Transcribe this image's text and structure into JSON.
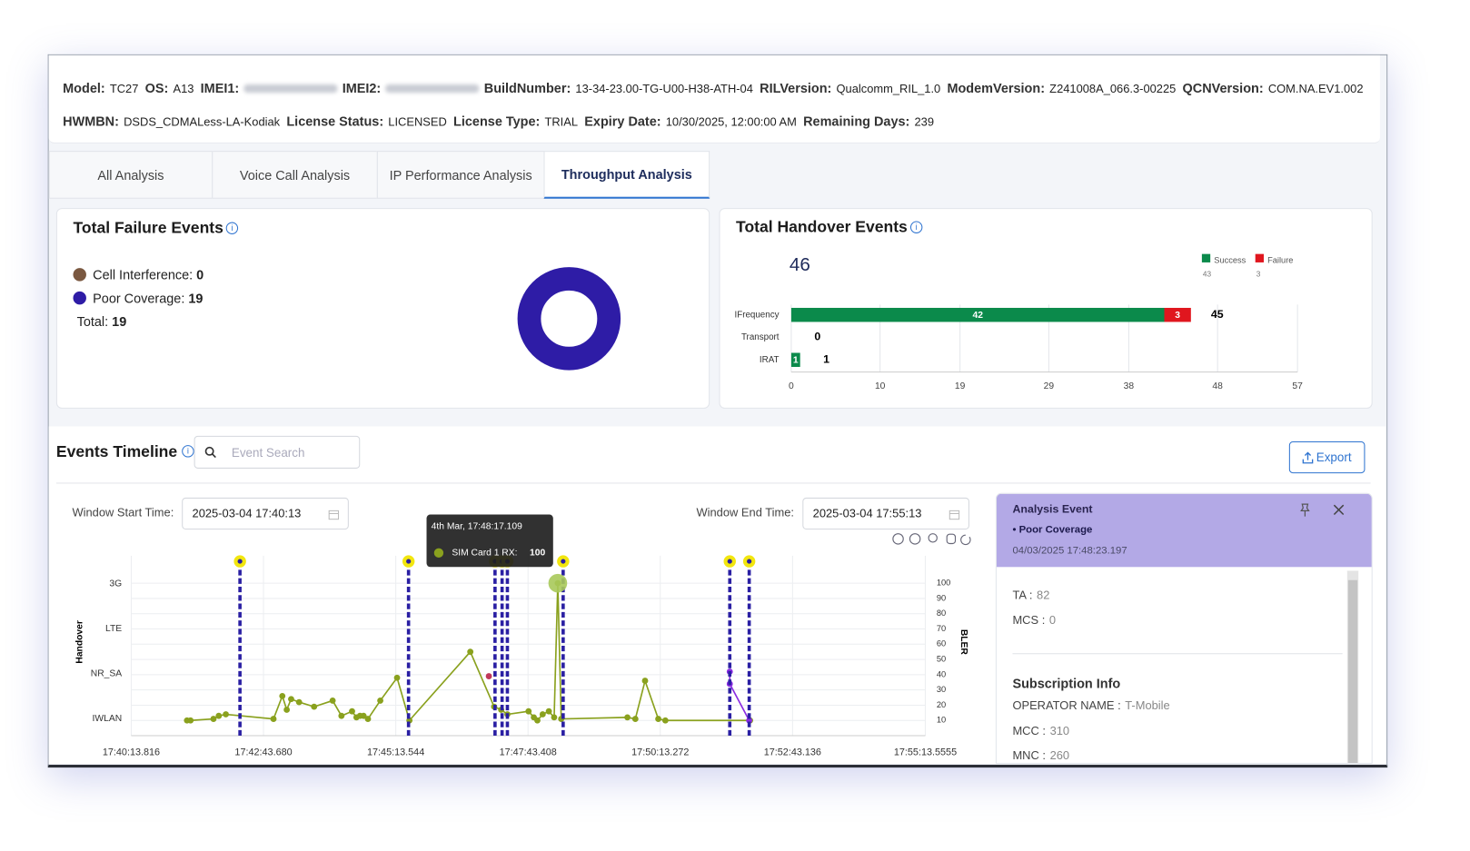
{
  "device_info": {
    "rows": [
      [
        {
          "label": "Model:",
          "value": "TC27"
        },
        {
          "label": "OS:",
          "value": "A13"
        },
        {
          "label": "IMEI1:",
          "redacted": true
        },
        {
          "label": "IMEI2:",
          "redacted": true
        },
        {
          "label": "BuildNumber:",
          "value": "13-34-23.00-TG-U00-H38-ATH-04"
        },
        {
          "label": "RILVersion:",
          "value": "Qualcomm_RIL_1.0"
        },
        {
          "label": "ModemVersion:",
          "value": "Z241008A_066.3-00225"
        },
        {
          "label": "QCNVersion:",
          "value": "COM.NA.EV1.002"
        }
      ],
      [
        {
          "label": "HWMBN:",
          "value": "DSDS_CDMALess-LA-Kodiak"
        },
        {
          "label": "License Status:",
          "value": "LICENSED"
        },
        {
          "label": "License Type:",
          "value": "TRIAL"
        },
        {
          "label": "Expiry Date:",
          "value": "10/30/2025, 12:00:00 AM"
        },
        {
          "label": "Remaining Days:",
          "value": "239"
        }
      ]
    ]
  },
  "tabs": {
    "items": [
      "All Analysis",
      "Voice Call Analysis",
      "IP Performance Analysis",
      "Throughput Analysis"
    ],
    "active": 3
  },
  "failure_events": {
    "title": "Total Failure Events",
    "legend": [
      {
        "label": "Cell Interference:",
        "value": 0,
        "color": "#7a5840"
      },
      {
        "label": "Poor Coverage:",
        "value": 19,
        "color": "#2e1ca6"
      }
    ],
    "total_label": "Total:",
    "total": 19
  },
  "handover_events": {
    "title": "Total Handover Events",
    "total": 46,
    "chart_data": {
      "type": "bar",
      "orientation": "horizontal",
      "stacked": true,
      "categories": [
        "IFrequency",
        "Transport",
        "IRAT"
      ],
      "series": [
        {
          "name": "Success",
          "color": "#0b8a4b",
          "total": 43,
          "values": [
            42,
            0,
            1
          ]
        },
        {
          "name": "Failure",
          "color": "#e0161e",
          "total": 3,
          "values": [
            3,
            0,
            0
          ]
        }
      ],
      "totals": [
        45,
        0,
        1
      ],
      "xlim": [
        0,
        57
      ],
      "xticks": [
        0,
        10,
        19,
        29,
        38,
        48,
        57
      ],
      "grid": true
    }
  },
  "events_timeline": {
    "title": "Events Timeline",
    "search_placeholder": "Event Search",
    "export": "Export",
    "window_start": {
      "label": "Window Start Time:",
      "value": "2025-03-04 17:40:13"
    },
    "window_end": {
      "label": "Window End Time:",
      "value": "2025-03-04 17:55:13"
    },
    "chart_data": {
      "type": "line",
      "ylabel": "Handover",
      "ycategories": [
        "IWLAN",
        "NR_SA",
        "LTE",
        "3G"
      ],
      "y2label": "BLER",
      "xlim": [
        "17:40:13.816",
        "17:55:13.5555"
      ],
      "xticks": [
        "17:40:13.816",
        "17:42:43.680",
        "17:45:13.544",
        "17:47:43.408",
        "17:50:13.272",
        "17:52:43.136",
        "17:55:13.5555"
      ],
      "y2lim": [
        0,
        118
      ],
      "y2ticks": [
        10,
        20,
        30,
        40,
        50,
        60,
        70,
        80,
        90,
        100
      ],
      "grid": true,
      "series": [
        {
          "name": "SIM Card 1 RX",
          "color": "#8aa11e",
          "axis": "y2",
          "x": [
            "17:41:17",
            "17:41:21",
            "17:41:47",
            "17:41:53",
            "17:42:01",
            "17:42:55",
            "17:43:05",
            "17:43:10",
            "17:43:15",
            "17:43:24",
            "17:43:41",
            "17:44:02",
            "17:44:12",
            "17:44:24",
            "17:44:29",
            "17:44:33",
            "17:44:37",
            "17:44:42",
            "17:44:56",
            "17:45:15",
            "17:45:29",
            "17:46:38",
            "17:47:05",
            "17:47:13",
            "17:47:20",
            "17:47:44",
            "17:47:50",
            "17:47:54",
            "17:48:00",
            "17:48:07",
            "17:48:13",
            "17:48:17.109",
            "17:48:21",
            "17:49:36",
            "17:49:45",
            "17:49:56",
            "17:50:11",
            "17:50:19",
            "17:51:55"
          ],
          "values": [
            10,
            10,
            11,
            13,
            14,
            11,
            26,
            17,
            24,
            22,
            19,
            23,
            13,
            16,
            12,
            13,
            13,
            11,
            23,
            38,
            10,
            55,
            19,
            17,
            14,
            16,
            12,
            10,
            14,
            16,
            12,
            100,
            11,
            12,
            11,
            36,
            11,
            10,
            10
          ]
        },
        {
          "color": "#8a2be2",
          "axis": "y2",
          "x": [
            "17:51:32",
            "17:51:32",
            "17:51:54"
          ],
          "values": [
            42,
            34,
            10
          ]
        },
        {
          "color": "#c0395a",
          "axis": "y2",
          "x": [
            "17:46:59"
          ],
          "values": [
            39
          ]
        }
      ],
      "events": {
        "color": "#2a1fa3",
        "marker_color": "#f2e60f",
        "x": [
          "17:42:17",
          "17:45:28",
          "17:47:06",
          "17:47:14",
          "17:47:20",
          "17:48:23.197",
          "17:51:32",
          "17:51:54"
        ]
      }
    },
    "tooltip": {
      "title": "4th Mar, 17:48:17.109",
      "label": "SIM Card 1 RX:",
      "value": 100
    }
  },
  "analysis_event": {
    "title": "Analysis Event",
    "event": "Poor Coverage",
    "timestamp": "04/03/2025 17:48:23.197",
    "fields": [
      {
        "label": "TA :",
        "value": "82"
      },
      {
        "label": "MCS :",
        "value": "0"
      }
    ],
    "subscription": {
      "title": "Subscription Info",
      "fields": [
        {
          "label": "OPERATOR NAME :",
          "value": "T-Mobile"
        },
        {
          "label": "MCC :",
          "value": "310"
        },
        {
          "label": "MNC :",
          "value": "260"
        }
      ]
    }
  }
}
